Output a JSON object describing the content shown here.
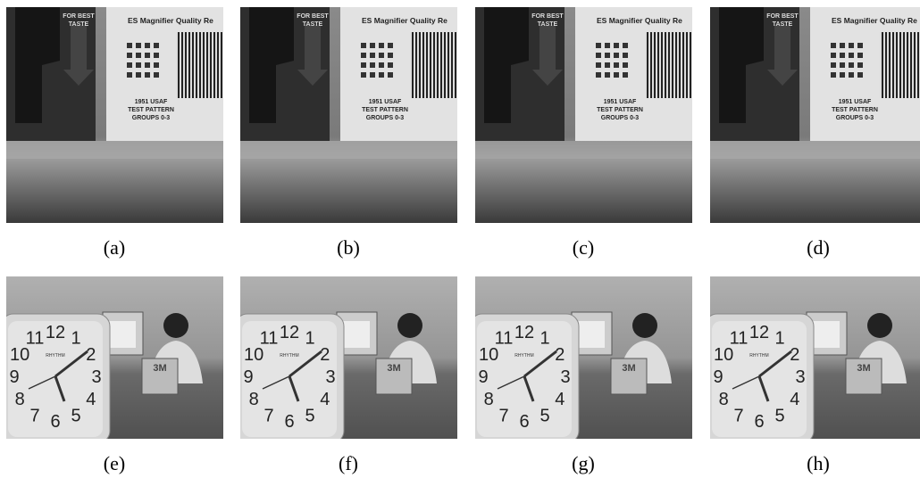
{
  "panels": [
    {
      "caption": "(a)"
    },
    {
      "caption": "(b)"
    },
    {
      "caption": "(c)"
    },
    {
      "caption": "(d)"
    },
    {
      "caption": "(e)"
    },
    {
      "caption": "(f)"
    },
    {
      "caption": "(g)"
    },
    {
      "caption": "(h)"
    }
  ],
  "scenes": {
    "label": {
      "title": "ES Magnifier Quality Re",
      "taste": [
        "FOR BEST",
        "TASTE"
      ],
      "pattern": [
        "1951 USAF",
        "TEST PATTERN",
        "GROUPS 0-3"
      ]
    },
    "clock": {
      "numbers": [
        "12",
        "1",
        "2",
        "3",
        "4",
        "5",
        "6",
        "7",
        "8",
        "9",
        "10",
        "11"
      ],
      "brand": "RHYTHM",
      "box": "3M"
    }
  }
}
